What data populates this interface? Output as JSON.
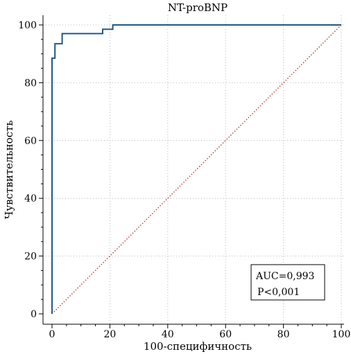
{
  "chart_data": {
    "type": "line",
    "title": "NT-proBNP",
    "xlabel": "100-специфичность",
    "ylabel": "Чувствительность",
    "xlim": [
      0,
      100
    ],
    "ylim": [
      0,
      100
    ],
    "xticks": [
      0,
      20,
      40,
      60,
      80,
      100
    ],
    "yticks": [
      0,
      20,
      40,
      60,
      80,
      100
    ],
    "grid": true,
    "series": [
      {
        "color": "#1f5a85",
        "style": "solid",
        "x": [
          0,
          0,
          1,
          1,
          3.5,
          3.5,
          17.5,
          17.5,
          21,
          21,
          100
        ],
        "y": [
          0,
          88.5,
          88.5,
          93.5,
          93.5,
          97,
          97,
          98.5,
          98.5,
          100,
          100
        ]
      },
      {
        "color": "#b03a2e",
        "style": "dotted",
        "x": [
          0,
          100
        ],
        "y": [
          0,
          100
        ]
      }
    ],
    "annotations": {
      "auc": "AUC=0,993",
      "p": "P<0,001",
      "placement": "bottom-right"
    }
  }
}
